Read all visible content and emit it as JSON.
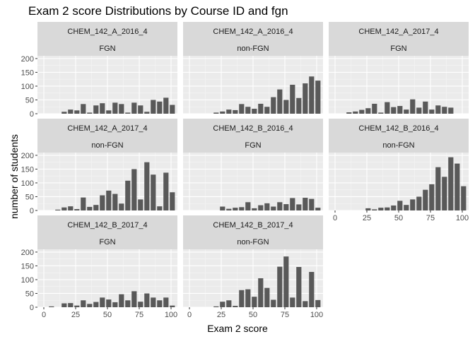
{
  "chart_data": {
    "type": "bar",
    "title": "Exam 2 score Distributions by Course ID and fgn",
    "xlabel": "Exam 2 score",
    "ylabel": "number of students",
    "xlim": [
      -5,
      105
    ],
    "ylim": [
      0,
      210
    ],
    "xticks": [
      0,
      25,
      50,
      75,
      100
    ],
    "yticks": [
      0,
      50,
      100,
      150,
      200
    ],
    "bin_width": 4,
    "facets": [
      {
        "course": "CHEM_142_A_2016_4",
        "fgn": "FGN",
        "x": [
          16,
          21,
          26,
          31,
          36,
          41,
          46,
          51,
          56,
          61,
          66,
          71,
          76,
          81,
          86,
          91,
          96,
          101
        ],
        "y": [
          7,
          15,
          12,
          35,
          4,
          30,
          38,
          12,
          40,
          35,
          4,
          40,
          30,
          7,
          50,
          44,
          58,
          32
        ]
      },
      {
        "course": "CHEM_142_A_2016_4",
        "fgn": "non-FGN",
        "x": [
          21,
          26,
          31,
          36,
          41,
          46,
          51,
          56,
          61,
          66,
          71,
          76,
          81,
          86,
          91,
          96,
          101
        ],
        "y": [
          4,
          8,
          15,
          13,
          35,
          25,
          18,
          36,
          25,
          60,
          88,
          50,
          105,
          57,
          110,
          135,
          120
        ]
      },
      {
        "course": "CHEM_142_A_2017_4",
        "fgn": "FGN",
        "x": [
          11,
          16,
          21,
          26,
          31,
          36,
          41,
          46,
          51,
          56,
          61,
          66,
          71,
          76,
          81,
          86,
          91
        ],
        "y": [
          5,
          8,
          14,
          20,
          36,
          4,
          42,
          24,
          28,
          15,
          52,
          22,
          44,
          15,
          30,
          25,
          22
        ]
      },
      {
        "course": "CHEM_142_A_2017_4",
        "fgn": "non-FGN",
        "x": [
          11,
          16,
          21,
          26,
          31,
          36,
          41,
          46,
          51,
          56,
          61,
          66,
          71,
          76,
          81,
          86,
          91,
          96,
          101
        ],
        "y": [
          3,
          11,
          15,
          5,
          47,
          13,
          20,
          55,
          72,
          60,
          25,
          108,
          150,
          40,
          175,
          130,
          15,
          137,
          66
        ]
      },
      {
        "course": "CHEM_142_B_2016_4",
        "fgn": "FGN",
        "x": [
          26,
          31,
          36,
          41,
          46,
          51,
          56,
          61,
          66,
          71,
          76,
          81,
          86,
          91,
          96,
          101
        ],
        "y": [
          14,
          6,
          10,
          12,
          30,
          8,
          19,
          26,
          14,
          30,
          23,
          45,
          22,
          46,
          42,
          10
        ]
      },
      {
        "course": "CHEM_142_B_2016_4",
        "fgn": "non-FGN",
        "x": [
          26,
          31,
          36,
          41,
          46,
          51,
          56,
          61,
          66,
          71,
          76,
          81,
          86,
          91,
          96,
          101
        ],
        "y": [
          8,
          4,
          10,
          11,
          18,
          35,
          20,
          40,
          50,
          75,
          95,
          157,
          122,
          193,
          170,
          88
        ]
      },
      {
        "course": "CHEM_142_B_2017_4",
        "fgn": "FGN",
        "x": [
          6,
          16,
          21,
          26,
          31,
          36,
          41,
          46,
          51,
          56,
          61,
          66,
          71,
          76,
          81,
          86,
          91,
          96,
          101
        ],
        "y": [
          3,
          14,
          15,
          6,
          25,
          12,
          19,
          35,
          28,
          18,
          47,
          25,
          58,
          20,
          50,
          35,
          25,
          35,
          6
        ]
      },
      {
        "course": "CHEM_142_B_2017_4",
        "fgn": "non-FGN",
        "x": [
          21,
          26,
          31,
          36,
          41,
          46,
          51,
          56,
          61,
          66,
          71,
          76,
          81,
          86,
          91,
          96,
          101
        ],
        "y": [
          3,
          20,
          25,
          5,
          62,
          65,
          38,
          105,
          70,
          27,
          147,
          184,
          35,
          146,
          22,
          128,
          26
        ]
      }
    ],
    "colors": {
      "bar": "#595959",
      "panel": "#ebebeb",
      "grid_major": "#ffffff",
      "grid_minor": "#f5f5f5",
      "strip": "#d9d9d9"
    }
  }
}
